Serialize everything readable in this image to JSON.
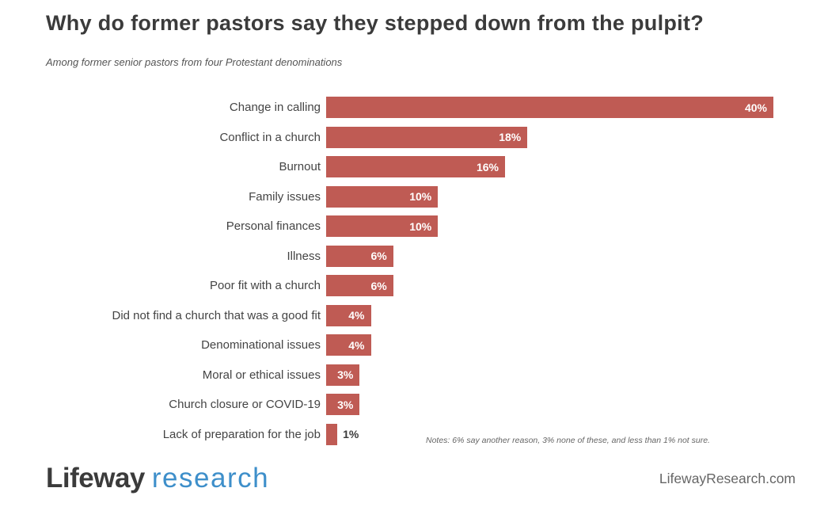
{
  "header": {
    "title": "Why do former pastors say they stepped down from the pulpit?",
    "subtitle": "Among former senior pastors from four Protestant denominations"
  },
  "chart_data": {
    "type": "bar",
    "orientation": "horizontal",
    "title": "Why do former pastors say they stepped down from the pulpit?",
    "subtitle": "Among former senior pastors from four Protestant denominations",
    "categories": [
      "Change in calling",
      "Conflict in a church",
      "Burnout",
      "Family issues",
      "Personal finances",
      "Illness",
      "Poor fit with a church",
      "Did not find a church that was a good fit",
      "Denominational issues",
      "Moral or ethical issues",
      "Church closure or COVID-19",
      "Lack of preparation for the job"
    ],
    "values": [
      40,
      18,
      16,
      10,
      10,
      6,
      6,
      4,
      4,
      3,
      3,
      1
    ],
    "value_labels": [
      "40%",
      "18%",
      "16%",
      "10%",
      "10%",
      "6%",
      "6%",
      "4%",
      "4%",
      "3%",
      "3%",
      "1%"
    ],
    "xlabel": "",
    "ylabel": "",
    "xlim": [
      0,
      40
    ],
    "grid": false,
    "legend": false,
    "value_label_position": "inside bar end, white; outside bar in dark for 1%"
  },
  "notes": "Notes: 6% say another reason, 3% none of these, and less than 1% not sure.",
  "footer": {
    "logo_primary": "Lifeway",
    "logo_secondary": "research",
    "website": "LifewayResearch.com"
  },
  "colors": {
    "bar": "#bf5b54",
    "title_text": "#3b3b3b",
    "category_text": "#444444",
    "value_text_inside": "#ffffff",
    "value_text_outside": "#3b3b3b",
    "subtitle_text": "#555555",
    "notes_text": "#666666",
    "logo_primary": "#3b3b3b",
    "logo_secondary": "#3e8fca",
    "website_text": "#666666",
    "background": "#ffffff"
  }
}
